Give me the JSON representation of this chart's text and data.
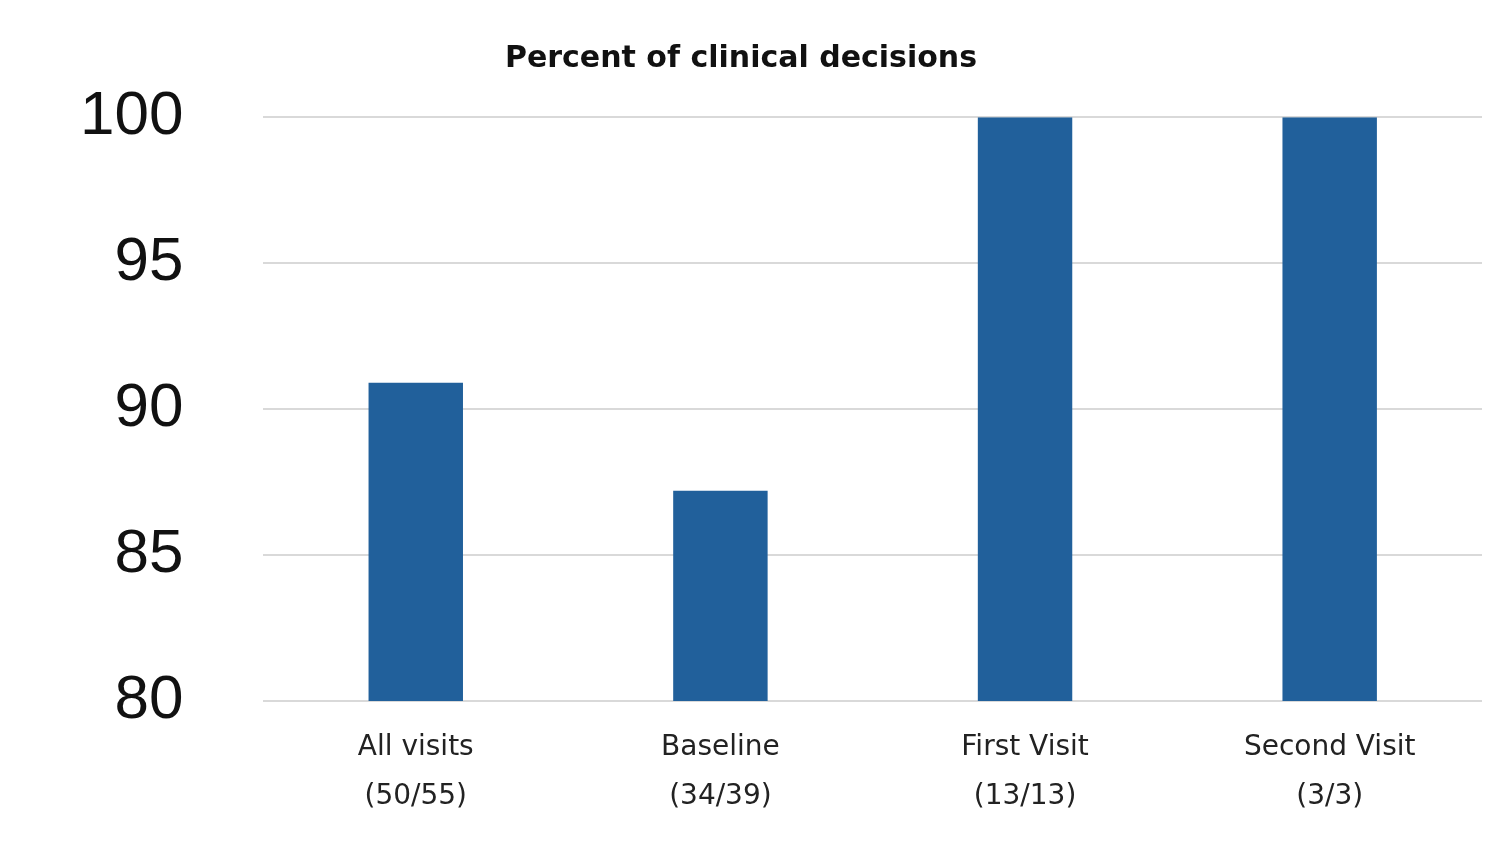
{
  "chart_data": {
    "type": "bar",
    "title": "Percent of clinical decisions",
    "categories": [
      "All visits\n(50/55)",
      "Baseline\n(34/39)",
      "First Visit\n(13/13)",
      "Second Visit\n(3/3)"
    ],
    "values": [
      90.9,
      87.2,
      100,
      100
    ],
    "color": "#21609b",
    "ylim": [
      80,
      100
    ],
    "yticks": [
      80,
      85,
      90,
      95,
      100
    ],
    "grid": "y"
  }
}
